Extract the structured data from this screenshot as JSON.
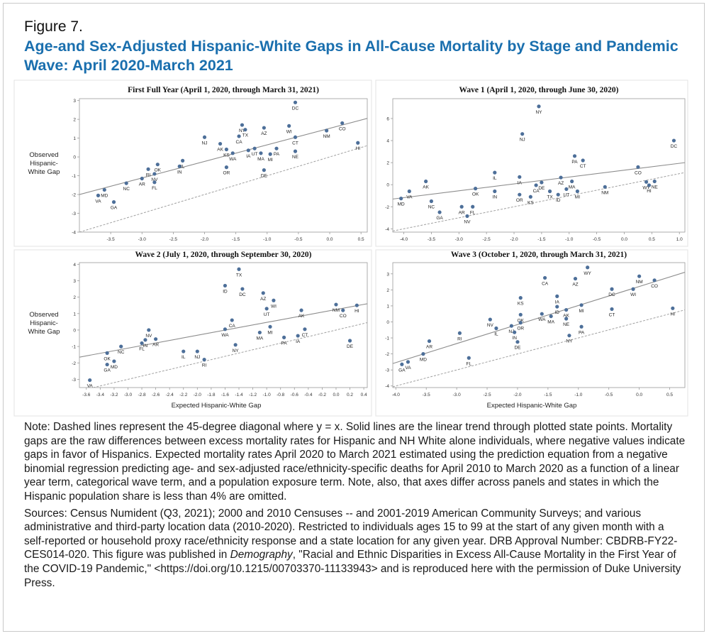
{
  "figure_label": "Figure 7.",
  "title": "Age-and Sex-Adjusted Hispanic-White Gaps in All-Cause Mortality by Stage and Pandemic Wave: April 2020-March 2021",
  "ylabel_lines": [
    "Observed",
    "Hispanic-",
    "White Gap"
  ],
  "xlabel": "Expected Hispanic-White Gap",
  "note": "Note: Dashed lines represent the 45-degree diagonal where y = x. Solid lines are the linear trend through plotted state points. Mortality gaps are the raw differences between excess mortality rates for Hispanic and NH White alone individuals, where negative values indicate gaps in favor of Hispanics. Expected mortality rates April 2020 to March 2021 estimated using the prediction equation from a negative binomial regression predicting age- and sex-adjusted race/ethnicity-specific deaths for April 2010 to March 2020 as a function of a linear year term, categorical wave term, and a population exposure term. Note, also, that axes differ across panels and states in which the Hispanic population share is less than 4% are omitted.",
  "sources_pre": "Sources: Census Numident (Q3, 2021); 2000 and 2010 Censuses -- and 2001-2019 American Community Surveys; and various administrative and third-party location data (2010-2020). Restricted to individuals ages 15 to 99 at the start of any given month with a self-reported or household proxy race/ethnicity response and a state location for any given year. DRB Approval Number: CBDRB-FY22-CES014-020. This figure was published in ",
  "sources_journal": "Demography",
  "sources_post": ", \"Racial and Ethnic Disparities in Excess All-Cause Mortality in the First Year of the COVID-19 Pandemic,\" <https://doi.org/10.1215/00703370-11133943> and is reproduced here with the permission of Duke University Press.",
  "colors": {
    "point": "#4d6f99",
    "trend": "#8c8c8c",
    "diagonal": "#a0a0a0",
    "axis": "#9a9a9a",
    "title_blue": "#1a6fae"
  },
  "chart_data": [
    {
      "type": "scatter",
      "title": "First Full Year (April 1, 2020, through March 31, 2021)",
      "xlabel": "",
      "ylabel": "Observed Hispanic-White Gap",
      "xlim": [
        -4,
        0.6
      ],
      "ylim": [
        -4,
        3.1
      ],
      "xticks": [
        -3.5,
        -3.0,
        -2.5,
        -2.0,
        -1.5,
        -1.0,
        -0.5,
        0.0,
        0.5
      ],
      "yticks": [
        -4,
        -3,
        -2,
        -1,
        0,
        1,
        2,
        3
      ],
      "trend": {
        "x0": -4,
        "y0": -2.0,
        "x1": 0.6,
        "y1": 2.05
      },
      "points": [
        {
          "s": "DC",
          "x": -0.55,
          "y": 2.9
        },
        {
          "s": "NY",
          "x": -1.4,
          "y": 1.7
        },
        {
          "s": "TX",
          "x": -1.35,
          "y": 1.45
        },
        {
          "s": "AZ",
          "x": -1.05,
          "y": 1.55
        },
        {
          "s": "WI",
          "x": -0.65,
          "y": 1.65
        },
        {
          "s": "CO",
          "x": 0.2,
          "y": 1.8
        },
        {
          "s": "NM",
          "x": -0.05,
          "y": 1.4
        },
        {
          "s": "CA",
          "x": -1.45,
          "y": 1.1
        },
        {
          "s": "NJ",
          "x": -2.0,
          "y": 1.05
        },
        {
          "s": "AK",
          "x": -1.75,
          "y": 0.7
        },
        {
          "s": "UT",
          "x": -1.2,
          "y": 0.45
        },
        {
          "s": "IA",
          "x": -1.3,
          "y": 0.35
        },
        {
          "s": "KS",
          "x": -1.65,
          "y": 0.4
        },
        {
          "s": "WA",
          "x": -1.55,
          "y": 0.2
        },
        {
          "s": "PA",
          "x": -0.85,
          "y": 0.45
        },
        {
          "s": "MA",
          "x": -1.1,
          "y": 0.2
        },
        {
          "s": "MI",
          "x": -0.95,
          "y": 0.15
        },
        {
          "s": "CT",
          "x": -0.55,
          "y": 1.05
        },
        {
          "s": "NE",
          "x": -0.55,
          "y": 0.3
        },
        {
          "s": "HI",
          "x": 0.45,
          "y": 0.75
        },
        {
          "s": "OR",
          "x": -1.65,
          "y": -0.55
        },
        {
          "s": "DE",
          "x": -1.05,
          "y": -0.7
        },
        {
          "s": "IL",
          "x": -2.35,
          "y": -0.2
        },
        {
          "s": "IN",
          "x": -2.4,
          "y": -0.5
        },
        {
          "s": "OK",
          "x": -2.75,
          "y": -0.4
        },
        {
          "s": "RI",
          "x": -2.9,
          "y": -0.65
        },
        {
          "s": "NV",
          "x": -2.8,
          "y": -0.9
        },
        {
          "s": "AR",
          "x": -3.0,
          "y": -1.15
        },
        {
          "s": "FL",
          "x": -2.8,
          "y": -1.35
        },
        {
          "s": "NC",
          "x": -3.25,
          "y": -1.4
        },
        {
          "s": "MD",
          "x": -3.6,
          "y": -1.75
        },
        {
          "s": "VA",
          "x": -3.7,
          "y": -2.05
        },
        {
          "s": "GA",
          "x": -3.45,
          "y": -2.4
        }
      ]
    },
    {
      "type": "scatter",
      "title": "Wave 1 (April 1, 2020, through June 30, 2020)",
      "xlabel": "",
      "ylabel": "",
      "xlim": [
        -4.2,
        1.1
      ],
      "ylim": [
        -4.3,
        7.8
      ],
      "xticks": [
        -4.0,
        -3.5,
        -3.0,
        -2.5,
        -2.0,
        -1.5,
        -1.0,
        -0.5,
        0.0,
        0.5,
        1.0
      ],
      "yticks": [
        -4,
        -2,
        0,
        2,
        4,
        6
      ],
      "trend": {
        "x0": -4.2,
        "y0": -1.3,
        "x1": 1.1,
        "y1": 2.0
      },
      "points": [
        {
          "s": "NY",
          "x": -1.55,
          "y": 7.1
        },
        {
          "s": "NJ",
          "x": -1.85,
          "y": 4.6
        },
        {
          "s": "DC",
          "x": 0.9,
          "y": 4.0
        },
        {
          "s": "PA",
          "x": -0.9,
          "y": 2.6
        },
        {
          "s": "CT",
          "x": -0.75,
          "y": 2.2
        },
        {
          "s": "CO",
          "x": 0.25,
          "y": 1.6
        },
        {
          "s": "IL",
          "x": -2.35,
          "y": 1.1
        },
        {
          "s": "IA",
          "x": -1.9,
          "y": 0.7
        },
        {
          "s": "AZ",
          "x": -1.15,
          "y": 0.65
        },
        {
          "s": "MA",
          "x": -0.95,
          "y": 0.3
        },
        {
          "s": "DE",
          "x": -1.5,
          "y": 0.2
        },
        {
          "s": "CA",
          "x": -1.6,
          "y": -0.05
        },
        {
          "s": "WY",
          "x": 0.4,
          "y": 0.25
        },
        {
          "s": "NE",
          "x": 0.55,
          "y": 0.3
        },
        {
          "s": "HI",
          "x": 0.45,
          "y": -0.05
        },
        {
          "s": "NM",
          "x": -0.35,
          "y": -0.2
        },
        {
          "s": "UT",
          "x": -1.05,
          "y": -0.4
        },
        {
          "s": "MI",
          "x": -0.85,
          "y": -0.6
        },
        {
          "s": "TX",
          "x": -1.35,
          "y": -0.6
        },
        {
          "s": "ID",
          "x": -1.2,
          "y": -0.9
        },
        {
          "s": "OR",
          "x": -1.9,
          "y": -0.9
        },
        {
          "s": "KS",
          "x": -1.7,
          "y": -1.1
        },
        {
          "s": "OK",
          "x": -2.7,
          "y": -0.35
        },
        {
          "s": "IN",
          "x": -2.35,
          "y": -0.6
        },
        {
          "s": "AK",
          "x": -3.6,
          "y": 0.3
        },
        {
          "s": "VA",
          "x": -3.9,
          "y": -0.6
        },
        {
          "s": "MD",
          "x": -4.05,
          "y": -1.25
        },
        {
          "s": "NC",
          "x": -3.5,
          "y": -1.5
        },
        {
          "s": "AR",
          "x": -2.95,
          "y": -2.0
        },
        {
          "s": "FL",
          "x": -2.75,
          "y": -2.0
        },
        {
          "s": "GA",
          "x": -3.35,
          "y": -2.5
        },
        {
          "s": "NV",
          "x": -2.85,
          "y": -2.85
        }
      ]
    },
    {
      "type": "scatter",
      "title": "Wave 2 (July 1, 2020, through September 30, 2020)",
      "xlabel": "Expected Hispanic-White Gap",
      "ylabel": "Observed Hispanic-White Gap",
      "xlim": [
        -3.7,
        0.45
      ],
      "ylim": [
        -3.5,
        4.1
      ],
      "xticks": [
        -3.6,
        -3.4,
        -3.2,
        -3.0,
        -2.8,
        -2.6,
        -2.4,
        -2.2,
        -2.0,
        -1.8,
        -1.6,
        -1.4,
        -1.2,
        -1.0,
        -0.8,
        -0.6,
        -0.4,
        -0.2,
        0.0,
        0.2,
        0.4
      ],
      "yticks": [
        -3,
        -2,
        -1,
        0,
        1,
        2,
        3,
        4
      ],
      "trend": {
        "x0": -3.7,
        "y0": -1.65,
        "x1": 0.45,
        "y1": 1.6
      },
      "points": [
        {
          "s": "TX",
          "x": -1.4,
          "y": 3.7
        },
        {
          "s": "ID",
          "x": -1.6,
          "y": 2.7
        },
        {
          "s": "DC",
          "x": -1.35,
          "y": 2.5
        },
        {
          "s": "AZ",
          "x": -1.05,
          "y": 2.25
        },
        {
          "s": "WI",
          "x": -0.9,
          "y": 1.8
        },
        {
          "s": "UT",
          "x": -1.0,
          "y": 1.3
        },
        {
          "s": "NM",
          "x": 0.0,
          "y": 1.55
        },
        {
          "s": "HI",
          "x": 0.3,
          "y": 1.5
        },
        {
          "s": "CO",
          "x": 0.1,
          "y": 1.2
        },
        {
          "s": "AK",
          "x": -0.5,
          "y": 1.2
        },
        {
          "s": "CA",
          "x": -1.5,
          "y": 0.6
        },
        {
          "s": "WA",
          "x": -1.6,
          "y": 0.05
        },
        {
          "s": "MI",
          "x": -0.95,
          "y": 0.2
        },
        {
          "s": "MA",
          "x": -1.1,
          "y": -0.15
        },
        {
          "s": "CT",
          "x": -0.45,
          "y": 0.05
        },
        {
          "s": "IA",
          "x": -0.55,
          "y": -0.35
        },
        {
          "s": "PA",
          "x": -0.75,
          "y": -0.45
        },
        {
          "s": "DE",
          "x": 0.2,
          "y": -0.65
        },
        {
          "s": "NY",
          "x": -1.45,
          "y": -0.9
        },
        {
          "s": "NV",
          "x": -2.7,
          "y": 0.0
        },
        {
          "s": "IN",
          "x": -2.75,
          "y": -0.6
        },
        {
          "s": "AR",
          "x": -2.6,
          "y": -0.55
        },
        {
          "s": "FL",
          "x": -2.8,
          "y": -0.8
        },
        {
          "s": "IL",
          "x": -2.2,
          "y": -1.3
        },
        {
          "s": "NJ",
          "x": -2.0,
          "y": -1.3
        },
        {
          "s": "RI",
          "x": -1.9,
          "y": -1.8
        },
        {
          "s": "NC",
          "x": -3.1,
          "y": -1.0
        },
        {
          "s": "OK",
          "x": -3.3,
          "y": -1.4
        },
        {
          "s": "MD",
          "x": -3.2,
          "y": -1.9
        },
        {
          "s": "GA",
          "x": -3.3,
          "y": -2.1
        },
        {
          "s": "VA",
          "x": -3.55,
          "y": -3.05
        }
      ]
    },
    {
      "type": "scatter",
      "title": "Wave 3 (October 1, 2020, through March 31, 2021)",
      "xlabel": "Expected Hispanic-White Gap",
      "ylabel": "",
      "xlim": [
        -4.05,
        0.75
      ],
      "ylim": [
        -4.1,
        3.7
      ],
      "xticks": [
        -4.0,
        -3.5,
        -3.0,
        -2.5,
        -2.0,
        -1.5,
        -1.0,
        -0.5,
        0.0,
        0.5
      ],
      "yticks": [
        -4,
        -3,
        -2,
        -1,
        0,
        1,
        2,
        3
      ],
      "trend": {
        "x0": -4.05,
        "y0": -2.6,
        "x1": 0.75,
        "y1": 3.1
      },
      "points": [
        {
          "s": "WY",
          "x": -0.85,
          "y": 3.4
        },
        {
          "s": "CA",
          "x": -1.55,
          "y": 2.75
        },
        {
          "s": "AZ",
          "x": -1.05,
          "y": 2.7
        },
        {
          "s": "NM",
          "x": 0.0,
          "y": 2.85
        },
        {
          "s": "CO",
          "x": 0.25,
          "y": 2.6
        },
        {
          "s": "DC",
          "x": -0.45,
          "y": 2.05
        },
        {
          "s": "WI",
          "x": -0.1,
          "y": 2.05
        },
        {
          "s": "KS",
          "x": -1.95,
          "y": 1.5
        },
        {
          "s": "IA",
          "x": -1.35,
          "y": 1.6
        },
        {
          "s": "ID",
          "x": -1.35,
          "y": 0.95
        },
        {
          "s": "AK",
          "x": -1.2,
          "y": 0.75
        },
        {
          "s": "MI",
          "x": -0.95,
          "y": 1.05
        },
        {
          "s": "WA",
          "x": -1.6,
          "y": 0.5
        },
        {
          "s": "MA",
          "x": -1.45,
          "y": 0.35
        },
        {
          "s": "NE",
          "x": -1.2,
          "y": 0.2
        },
        {
          "s": "CT",
          "x": -0.45,
          "y": 0.8
        },
        {
          "s": "HI",
          "x": 0.55,
          "y": 0.85
        },
        {
          "s": "OK",
          "x": -1.95,
          "y": 0.45
        },
        {
          "s": "OR",
          "x": -1.95,
          "y": -0.05
        },
        {
          "s": "PA",
          "x": -0.95,
          "y": -0.3
        },
        {
          "s": "NY",
          "x": -1.15,
          "y": -0.85
        },
        {
          "s": "NV",
          "x": -2.45,
          "y": 0.15
        },
        {
          "s": "IL",
          "x": -2.35,
          "y": -0.4
        },
        {
          "s": "NJ",
          "x": -2.1,
          "y": -0.25
        },
        {
          "s": "IN",
          "x": -2.05,
          "y": -0.65
        },
        {
          "s": "DE",
          "x": -2.0,
          "y": -1.25
        },
        {
          "s": "RI",
          "x": -2.95,
          "y": -0.7
        },
        {
          "s": "FL",
          "x": -2.8,
          "y": -2.25
        },
        {
          "s": "AR",
          "x": -3.45,
          "y": -1.2
        },
        {
          "s": "MD",
          "x": -3.55,
          "y": -2.0
        },
        {
          "s": "VA",
          "x": -3.8,
          "y": -2.5
        },
        {
          "s": "GA",
          "x": -3.9,
          "y": -2.65
        }
      ]
    }
  ]
}
